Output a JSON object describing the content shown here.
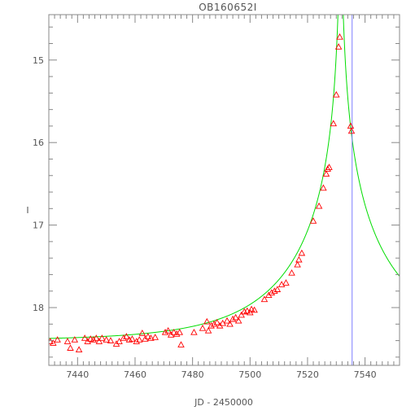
{
  "chart_data": {
    "type": "scatter",
    "title": "OB160652I",
    "xlabel": "JD - 2450000",
    "ylabel": "I",
    "xlim": [
      7430,
      7552
    ],
    "ylim": [
      18.7,
      14.45
    ],
    "y_inverted": true,
    "xticks": [
      7440,
      7460,
      7480,
      7500,
      7520,
      7540
    ],
    "yticks": [
      15,
      16,
      17,
      18
    ],
    "vertical_line_x": 7535.5,
    "colors": {
      "points": "#ff0000",
      "model": "#00dd00",
      "vline": "#8080ff",
      "axes": "#888888",
      "text": "#555555"
    },
    "series": [
      {
        "marker": "triangle",
        "points": [
          [
            7430.5,
            18.41
          ],
          [
            7431.5,
            18.43
          ],
          [
            7433,
            18.39
          ],
          [
            7436.5,
            18.41
          ],
          [
            7437.5,
            18.49
          ],
          [
            7439,
            18.39
          ],
          [
            7440.5,
            18.51
          ],
          [
            7442.5,
            18.37
          ],
          [
            7443.5,
            18.41
          ],
          [
            7444.5,
            18.38
          ],
          [
            7445.5,
            18.39
          ],
          [
            7446.5,
            18.37
          ],
          [
            7447.5,
            18.41
          ],
          [
            7448.5,
            18.37
          ],
          [
            7450,
            18.39
          ],
          [
            7451.5,
            18.4
          ],
          [
            7453.5,
            18.44
          ],
          [
            7454.5,
            18.41
          ],
          [
            7456,
            18.37
          ],
          [
            7457,
            18.35
          ],
          [
            7458,
            18.39
          ],
          [
            7459,
            18.38
          ],
          [
            7460.5,
            18.41
          ],
          [
            7461.5,
            18.39
          ],
          [
            7462.5,
            18.31
          ],
          [
            7463.5,
            18.38
          ],
          [
            7464.5,
            18.35
          ],
          [
            7465.5,
            18.37
          ],
          [
            7467,
            18.36
          ],
          [
            7470.5,
            18.3
          ],
          [
            7471.5,
            18.28
          ],
          [
            7472.5,
            18.33
          ],
          [
            7473.5,
            18.3
          ],
          [
            7474.5,
            18.32
          ],
          [
            7475.5,
            18.3
          ],
          [
            7476,
            18.45
          ],
          [
            7480.5,
            18.3
          ],
          [
            7483.5,
            18.25
          ],
          [
            7485,
            18.17
          ],
          [
            7485.5,
            18.28
          ],
          [
            7486.5,
            18.22
          ],
          [
            7487.5,
            18.2
          ],
          [
            7488.5,
            18.18
          ],
          [
            7489.5,
            18.22
          ],
          [
            7490.5,
            18.19
          ],
          [
            7492,
            18.16
          ],
          [
            7493,
            18.2
          ],
          [
            7494,
            18.14
          ],
          [
            7495,
            18.12
          ],
          [
            7496,
            18.16
          ],
          [
            7497,
            18.09
          ],
          [
            7498,
            18.05
          ],
          [
            7499,
            18.04
          ],
          [
            7500,
            18.06
          ],
          [
            7500.5,
            18.02
          ],
          [
            7501.5,
            18.03
          ],
          [
            7505,
            17.9
          ],
          [
            7506.5,
            17.85
          ],
          [
            7507.5,
            17.82
          ],
          [
            7508.5,
            17.8
          ],
          [
            7509.5,
            17.78
          ],
          [
            7511,
            17.72
          ],
          [
            7512.5,
            17.7
          ],
          [
            7514.5,
            17.58
          ],
          [
            7516.5,
            17.48
          ],
          [
            7517,
            17.42
          ],
          [
            7518,
            17.34
          ],
          [
            7522,
            16.95
          ],
          [
            7524,
            16.77
          ],
          [
            7525.5,
            16.55
          ],
          [
            7526.5,
            16.38
          ],
          [
            7527,
            16.32
          ],
          [
            7527.5,
            16.3
          ],
          [
            7529,
            15.77
          ],
          [
            7530,
            15.42
          ],
          [
            7530.8,
            14.84
          ],
          [
            7531.2,
            14.72
          ],
          [
            7535,
            15.8
          ],
          [
            7535.3,
            15.86
          ]
        ]
      }
    ]
  }
}
